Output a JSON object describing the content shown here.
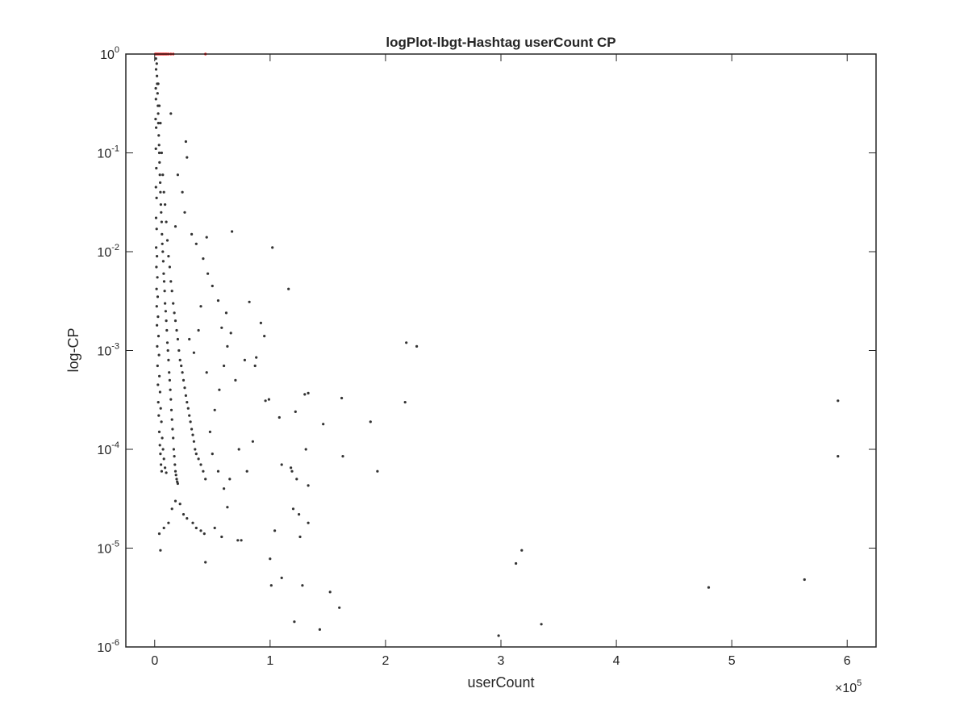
{
  "chart_data": {
    "type": "scatter",
    "title": "logPlot-lbgt-Hashtag userCount CP",
    "xlabel": "userCount",
    "ylabel": "log-CP",
    "x_multiplier": "×10",
    "x_multiplier_exponent": "5",
    "xlim": [
      -25000,
      625000
    ],
    "ylim": [
      1e-06,
      1
    ],
    "yscale": "log",
    "grid": false,
    "x_ticks": [
      {
        "value": 0,
        "label": "0"
      },
      {
        "value": 100000,
        "label": "1"
      },
      {
        "value": 200000,
        "label": "2"
      },
      {
        "value": 300000,
        "label": "3"
      },
      {
        "value": 400000,
        "label": "4"
      },
      {
        "value": 500000,
        "label": "5"
      },
      {
        "value": 600000,
        "label": "6"
      }
    ],
    "y_ticks": [
      {
        "value": 1e-06,
        "base": "10",
        "exp": "-6"
      },
      {
        "value": 1e-05,
        "base": "10",
        "exp": "-5"
      },
      {
        "value": 0.0001,
        "base": "10",
        "exp": "-4"
      },
      {
        "value": 0.001,
        "base": "10",
        "exp": "-3"
      },
      {
        "value": 0.01,
        "base": "10",
        "exp": "-2"
      },
      {
        "value": 0.1,
        "base": "10",
        "exp": "-1"
      },
      {
        "value": 1,
        "base": "10",
        "exp": "0"
      }
    ],
    "series": [
      {
        "color": "#333333",
        "points": [
          [
            1500,
            1.0
          ],
          [
            1800,
            0.8
          ],
          [
            2000,
            0.6
          ],
          [
            2200,
            0.5
          ],
          [
            2500,
            0.4
          ],
          [
            2800,
            0.3
          ],
          [
            3000,
            0.25
          ],
          [
            3200,
            0.2
          ],
          [
            3500,
            0.15
          ],
          [
            3800,
            0.12
          ],
          [
            4000,
            0.1
          ],
          [
            4200,
            0.08
          ],
          [
            4500,
            0.06
          ],
          [
            4800,
            0.05
          ],
          [
            5000,
            0.04
          ],
          [
            5300,
            0.03
          ],
          [
            5600,
            0.025
          ],
          [
            6000,
            0.02
          ],
          [
            6300,
            0.015
          ],
          [
            6600,
            0.012
          ],
          [
            7000,
            0.01
          ],
          [
            7400,
            0.008
          ],
          [
            7800,
            0.006
          ],
          [
            8200,
            0.005
          ],
          [
            8600,
            0.004
          ],
          [
            9000,
            0.003
          ],
          [
            9500,
            0.0025
          ],
          [
            10000,
            0.002
          ],
          [
            10500,
            0.0016
          ],
          [
            11000,
            0.0012
          ],
          [
            11500,
            0.001
          ],
          [
            12000,
            0.0008
          ],
          [
            12500,
            0.0006
          ],
          [
            13000,
            0.0005
          ],
          [
            13500,
            0.0004
          ],
          [
            14000,
            0.00032
          ],
          [
            14500,
            0.00025
          ],
          [
            15000,
            0.0002
          ],
          [
            15500,
            0.00016
          ],
          [
            16000,
            0.00013
          ],
          [
            16500,
            0.0001
          ],
          [
            17000,
            8.5e-05
          ],
          [
            17500,
            7e-05
          ],
          [
            18000,
            6e-05
          ],
          [
            18500,
            5.5e-05
          ],
          [
            19000,
            5e-05
          ],
          [
            19500,
            4.7e-05
          ],
          [
            20000,
            4.5e-05
          ],
          [
            1000,
            0.9
          ],
          [
            1200,
            0.7
          ],
          [
            900,
            0.45
          ],
          [
            1100,
            0.35
          ],
          [
            800,
            0.22
          ],
          [
            1300,
            0.18
          ],
          [
            1000,
            0.11
          ],
          [
            1400,
            0.07
          ],
          [
            1100,
            0.045
          ],
          [
            1600,
            0.035
          ],
          [
            1200,
            0.022
          ],
          [
            1700,
            0.017
          ],
          [
            1300,
            0.011
          ],
          [
            2000,
            0.009
          ],
          [
            1500,
            0.007
          ],
          [
            2300,
            0.0055
          ],
          [
            1600,
            0.0042
          ],
          [
            2600,
            0.0035
          ],
          [
            1800,
            0.0028
          ],
          [
            2900,
            0.0022
          ],
          [
            2000,
            0.0018
          ],
          [
            3300,
            0.0014
          ],
          [
            2200,
            0.0011
          ],
          [
            3700,
            0.0009
          ],
          [
            2500,
            0.0007
          ],
          [
            4100,
            0.00055
          ],
          [
            2800,
            0.00045
          ],
          [
            4600,
            0.00038
          ],
          [
            3100,
            0.0003
          ],
          [
            5200,
            0.00026
          ],
          [
            3500,
            0.00022
          ],
          [
            5800,
            0.00019
          ],
          [
            4000,
            0.00015
          ],
          [
            6500,
            0.00013
          ],
          [
            4500,
            0.00011
          ],
          [
            7200,
            0.0001
          ],
          [
            5000,
            9e-05
          ],
          [
            8000,
            8e-05
          ],
          [
            5500,
            7e-05
          ],
          [
            9000,
            6.5e-05
          ],
          [
            6000,
            6e-05
          ],
          [
            10000,
            5.8e-05
          ],
          [
            3000,
            0.5
          ],
          [
            4000,
            0.3
          ],
          [
            5000,
            0.2
          ],
          [
            6000,
            0.1
          ],
          [
            7000,
            0.06
          ],
          [
            8000,
            0.04
          ],
          [
            9000,
            0.03
          ],
          [
            10000,
            0.02
          ],
          [
            11000,
            0.013
          ],
          [
            12000,
            0.009
          ],
          [
            13000,
            0.007
          ],
          [
            14000,
            0.005
          ],
          [
            15000,
            0.004
          ],
          [
            16000,
            0.003
          ],
          [
            17000,
            0.0024
          ],
          [
            18000,
            0.002
          ],
          [
            19000,
            0.0016
          ],
          [
            20000,
            0.0013
          ],
          [
            21000,
            0.001
          ],
          [
            22000,
            0.0008
          ],
          [
            23000,
            0.0007
          ],
          [
            24000,
            0.0006
          ],
          [
            25000,
            0.0005
          ],
          [
            26000,
            0.00042
          ],
          [
            27000,
            0.00035
          ],
          [
            28000,
            0.0003
          ],
          [
            29000,
            0.00026
          ],
          [
            30000,
            0.00022
          ],
          [
            31000,
            0.00019
          ],
          [
            32000,
            0.00016
          ],
          [
            33000,
            0.00014
          ],
          [
            34000,
            0.00012
          ],
          [
            35000,
            0.0001
          ],
          [
            36000,
            9e-05
          ],
          [
            38000,
            8e-05
          ],
          [
            40000,
            7e-05
          ],
          [
            42000,
            6e-05
          ],
          [
            44000,
            5e-05
          ],
          [
            14000,
            0.25
          ],
          [
            27000,
            0.13
          ],
          [
            28000,
            0.09
          ],
          [
            20000,
            0.06
          ],
          [
            24000,
            0.04
          ],
          [
            26000,
            0.025
          ],
          [
            18000,
            0.018
          ],
          [
            32000,
            0.015
          ],
          [
            45000,
            0.014
          ],
          [
            67000,
            0.016
          ],
          [
            102000,
            0.011
          ],
          [
            116000,
            0.0042
          ],
          [
            82000,
            0.0031
          ],
          [
            92000,
            0.0019
          ],
          [
            95000,
            0.0014
          ],
          [
            88000,
            0.00085
          ],
          [
            87000,
            0.0007
          ],
          [
            218000,
            0.0012
          ],
          [
            227000,
            0.0011
          ],
          [
            217000,
            0.0003
          ],
          [
            162000,
            0.00033
          ],
          [
            130000,
            0.00036
          ],
          [
            133000,
            0.00037
          ],
          [
            122000,
            0.00024
          ],
          [
            146000,
            0.00018
          ],
          [
            187000,
            0.00019
          ],
          [
            108000,
            0.00021
          ],
          [
            96000,
            0.00031
          ],
          [
            99000,
            0.00032
          ],
          [
            85000,
            0.00012
          ],
          [
            110000,
            7e-05
          ],
          [
            118000,
            6.5e-05
          ],
          [
            123000,
            5e-05
          ],
          [
            131000,
            0.0001
          ],
          [
            163000,
            8.5e-05
          ],
          [
            193000,
            6e-05
          ],
          [
            119000,
            6e-05
          ],
          [
            133000,
            4.3e-05
          ],
          [
            120000,
            2.5e-05
          ],
          [
            125000,
            2.2e-05
          ],
          [
            126000,
            1.3e-05
          ],
          [
            133000,
            1.8e-05
          ],
          [
            104000,
            1.5e-05
          ],
          [
            100000,
            7.8e-06
          ],
          [
            101000,
            4.2e-06
          ],
          [
            110000,
            5e-06
          ],
          [
            128000,
            4.2e-06
          ],
          [
            152000,
            3.6e-06
          ],
          [
            160000,
            2.5e-06
          ],
          [
            121000,
            1.8e-06
          ],
          [
            143000,
            1.5e-06
          ],
          [
            298000,
            1.3e-06
          ],
          [
            335000,
            1.7e-06
          ],
          [
            313000,
            7e-06
          ],
          [
            318000,
            9.5e-06
          ],
          [
            480000,
            4e-06
          ],
          [
            563000,
            4.8e-06
          ],
          [
            592000,
            0.00031
          ],
          [
            592000,
            8.5e-05
          ],
          [
            44000,
            7.2e-06
          ],
          [
            5000,
            9.5e-06
          ],
          [
            4000,
            1.4e-05
          ],
          [
            8000,
            1.6e-05
          ],
          [
            12000,
            1.8e-05
          ],
          [
            15000,
            2.5e-05
          ],
          [
            18000,
            3e-05
          ],
          [
            22000,
            2.8e-05
          ],
          [
            25000,
            2.2e-05
          ],
          [
            28000,
            2e-05
          ],
          [
            33000,
            1.8e-05
          ],
          [
            36000,
            1.6e-05
          ],
          [
            40000,
            1.5e-05
          ],
          [
            43000,
            1.4e-05
          ],
          [
            52000,
            1.6e-05
          ],
          [
            58000,
            1.3e-05
          ],
          [
            63000,
            2.6e-05
          ],
          [
            72000,
            1.2e-05
          ],
          [
            75000,
            1.2e-05
          ],
          [
            60000,
            4e-05
          ],
          [
            65000,
            5e-05
          ],
          [
            55000,
            6e-05
          ],
          [
            50000,
            9e-05
          ],
          [
            48000,
            0.00015
          ],
          [
            52000,
            0.00025
          ],
          [
            56000,
            0.0004
          ],
          [
            60000,
            0.0007
          ],
          [
            63000,
            0.0011
          ],
          [
            66000,
            0.0015
          ],
          [
            58000,
            0.0017
          ],
          [
            62000,
            0.0024
          ],
          [
            55000,
            0.0032
          ],
          [
            50000,
            0.0045
          ],
          [
            46000,
            0.006
          ],
          [
            42000,
            0.0085
          ],
          [
            36000,
            0.012
          ],
          [
            40000,
            0.0028
          ],
          [
            38000,
            0.0016
          ],
          [
            34000,
            0.00095
          ],
          [
            30000,
            0.0013
          ],
          [
            45000,
            0.0006
          ],
          [
            70000,
            0.0005
          ],
          [
            78000,
            0.0008
          ],
          [
            73000,
            0.0001
          ],
          [
            80000,
            6e-05
          ]
        ]
      },
      {
        "color": "#ff0000",
        "points": [
          [
            500,
            1.0
          ],
          [
            1500,
            1.0
          ],
          [
            2500,
            1.0
          ],
          [
            3500,
            1.0
          ],
          [
            4500,
            1.0
          ],
          [
            5500,
            1.0
          ],
          [
            6500,
            1.0
          ],
          [
            7500,
            1.0
          ],
          [
            8500,
            1.0
          ],
          [
            9500,
            1.0
          ],
          [
            10500,
            1.0
          ],
          [
            12000,
            1.0
          ],
          [
            14000,
            1.0
          ],
          [
            16000,
            1.0
          ],
          [
            44000,
            1.0
          ]
        ]
      }
    ]
  }
}
